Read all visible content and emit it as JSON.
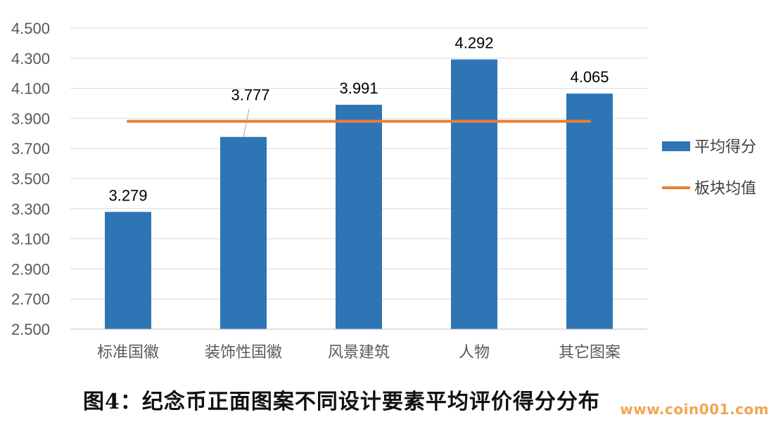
{
  "chart_data": {
    "type": "bar",
    "categories": [
      "标准国徽",
      "装饰性国徽",
      "风景建筑",
      "人物",
      "其它图案"
    ],
    "series": [
      {
        "name": "平均得分",
        "type": "bar",
        "values": [
          3.279,
          3.777,
          3.991,
          4.292,
          4.065
        ],
        "color": "#2e75b6"
      },
      {
        "name": "板块均值",
        "type": "line",
        "values": [
          3.881,
          3.881,
          3.881,
          3.881,
          3.881
        ],
        "color": "#ed7d31"
      }
    ],
    "data_labels": [
      "3.279",
      "3.777",
      "3.991",
      "4.292",
      "4.065"
    ],
    "y_ticks": [
      "2.500",
      "2.700",
      "2.900",
      "3.100",
      "3.300",
      "3.500",
      "3.700",
      "3.900",
      "4.100",
      "4.300",
      "4.500"
    ],
    "ylim": [
      2.5,
      4.5
    ],
    "grid": true,
    "legend_position": "right"
  },
  "caption": "图4：纪念币正面图案不同设计要素平均评价得分分布",
  "watermark": "www.coin001.com"
}
